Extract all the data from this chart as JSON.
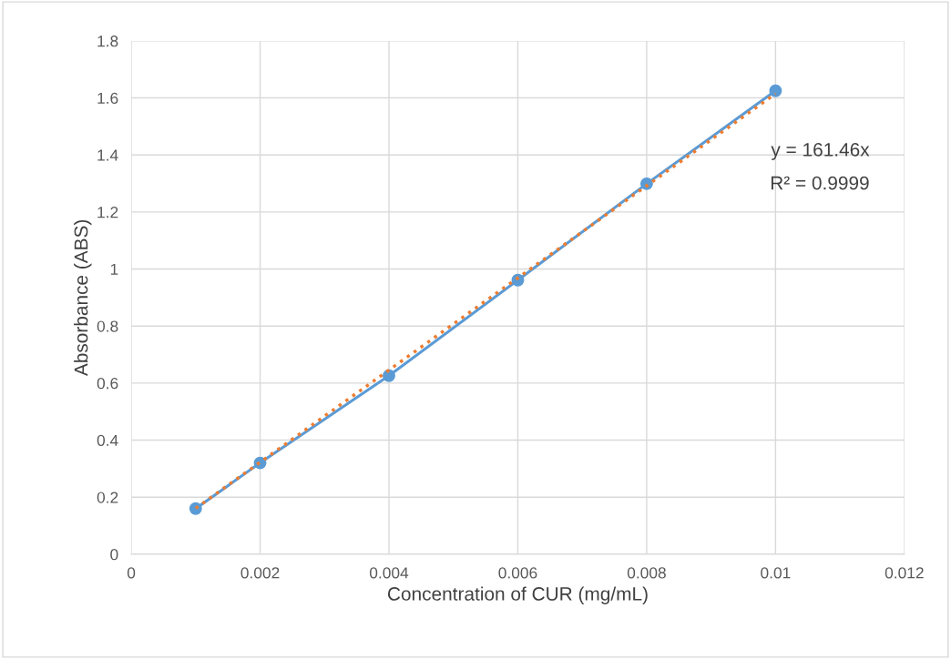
{
  "chart_data": {
    "type": "line",
    "xlabel": "Concentration of CUR (mg/mL)",
    "ylabel": "Absorbance (ABS)",
    "x": [
      0.001,
      0.002,
      0.004,
      0.006,
      0.008,
      0.01
    ],
    "series": [
      {
        "color": "#5b9bd5",
        "marker": "circle",
        "line_style": "solid",
        "values": [
          0.16,
          0.32,
          0.626,
          0.961,
          1.299,
          1.625
        ]
      },
      {
        "color": "#ed7d31",
        "marker": "none",
        "line_style": "dotted",
        "x": [
          0.001,
          0.01
        ],
        "values": [
          0.161,
          1.615
        ]
      }
    ],
    "annotations": [
      "y = 161.46x",
      "R² = 0.9999"
    ],
    "xlim": [
      0,
      0.012
    ],
    "xticks": [
      0,
      0.002,
      0.004,
      0.006,
      0.008,
      0.01,
      0.012
    ],
    "ylim": [
      0,
      1.8
    ],
    "yticks": [
      0,
      0.2,
      0.4,
      0.6,
      0.8,
      1,
      1.2,
      1.4,
      1.6,
      1.8
    ],
    "grid": true,
    "legend": false
  }
}
